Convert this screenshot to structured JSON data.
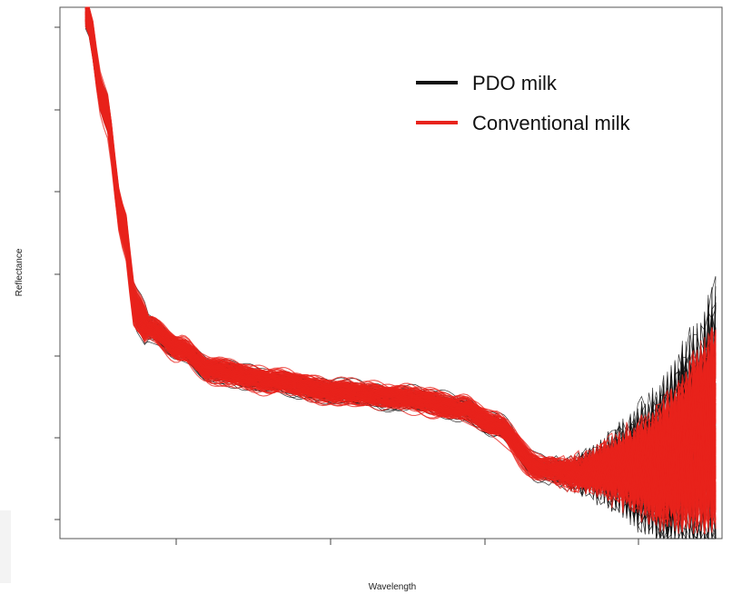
{
  "chart_data": {
    "type": "line",
    "title": "",
    "xlabel": "Wavelength",
    "ylabel": "Reflectance",
    "x_ticks_labeled": false,
    "y_ticks_labeled": false,
    "grid": false,
    "legend_position": "top-right",
    "series": [
      {
        "name": "PDO milk",
        "color": "#111111"
      },
      {
        "name": "Conventional milk",
        "color": "#e8231c"
      }
    ],
    "x": [
      0,
      0.03,
      0.06,
      0.08,
      0.1,
      0.15,
      0.2,
      0.3,
      0.4,
      0.5,
      0.6,
      0.65,
      0.72,
      0.78,
      0.85,
      0.9,
      0.94,
      0.97,
      1.0
    ],
    "mean_profile": [
      1.0,
      0.82,
      0.6,
      0.44,
      0.41,
      0.37,
      0.33,
      0.31,
      0.29,
      0.28,
      0.26,
      0.23,
      0.15,
      0.14,
      0.15,
      0.15,
      0.17,
      0.2,
      0.22
    ]
  }
}
